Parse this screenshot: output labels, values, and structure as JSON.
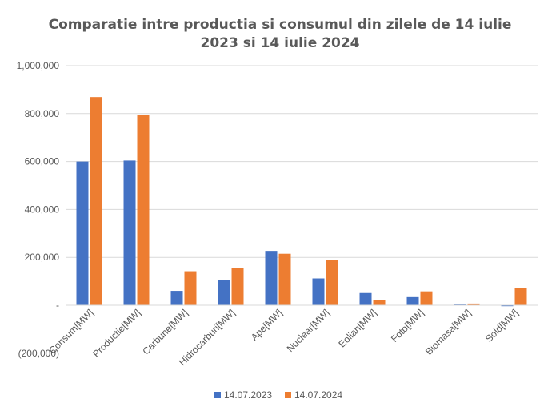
{
  "chart_data": {
    "type": "bar",
    "title_lines": [
      "Comparatie intre productia si consumul din zilele de 14 iulie",
      "2023 si 14 iulie 2024"
    ],
    "categories": [
      "Consum[MW]",
      "Productie[MW]",
      "Carbune[MW]",
      "Hidrocarburi[MW]",
      "Ape[MW]",
      "Nuclear[MW]",
      "Eolian[MW]",
      "Foto[MW]",
      "Biomasa[MW]",
      "Sold[MW]"
    ],
    "series": [
      {
        "name": "14.07.2023",
        "color": "#4472C4",
        "values": [
          600000,
          604000,
          60000,
          106000,
          227000,
          112000,
          51000,
          34000,
          3000,
          -4000
        ]
      },
      {
        "name": "14.07.2024",
        "color": "#ED7D31",
        "values": [
          869000,
          794000,
          142000,
          154000,
          215000,
          190000,
          22000,
          58000,
          7000,
          72000
        ]
      }
    ],
    "ylim": [
      -200000,
      1000000
    ],
    "yticks": [
      -200000,
      0,
      200000,
      400000,
      600000,
      800000,
      1000000
    ],
    "ytick_labels": [
      "(200,000)",
      "-",
      "200,000",
      "400,000",
      "600,000",
      "800,000",
      "1,000,000"
    ],
    "gridlines": true,
    "legend_position": "bottom"
  }
}
